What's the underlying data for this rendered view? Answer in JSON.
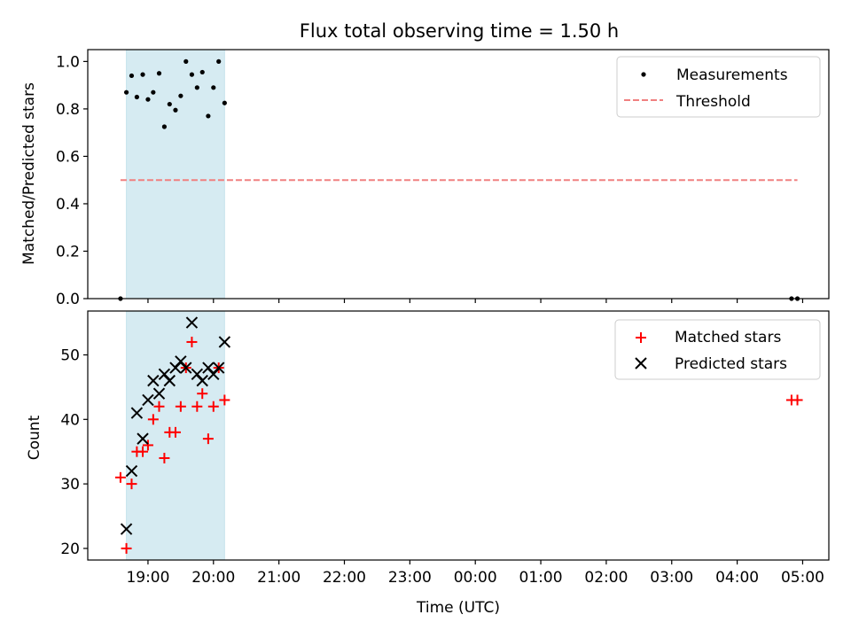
{
  "chart_data": [
    {
      "type": "scatter",
      "title": "Flux total observing time = 1.50 h",
      "xlabel": "",
      "ylabel": "Matched/Predicted stars",
      "ylim": [
        0,
        1.05
      ],
      "yticks": [
        "0.0",
        "0.2",
        "0.4",
        "0.6",
        "0.8",
        "1.0"
      ],
      "shaded_interval_hours": [
        18.67,
        20.17
      ],
      "shade_color": "#add8e6",
      "legend_position": "top-right",
      "series": [
        {
          "name": "Measurements",
          "marker": "dot",
          "color": "#000000",
          "points": [
            [
              18.58,
              0.0
            ],
            [
              18.67,
              0.87
            ],
            [
              18.75,
              0.94
            ],
            [
              18.83,
              0.85
            ],
            [
              18.92,
              0.945
            ],
            [
              19.0,
              0.84
            ],
            [
              19.08,
              0.87
            ],
            [
              19.17,
              0.95
            ],
            [
              19.25,
              0.725
            ],
            [
              19.33,
              0.82
            ],
            [
              19.42,
              0.795
            ],
            [
              19.5,
              0.855
            ],
            [
              19.58,
              1.0
            ],
            [
              19.67,
              0.945
            ],
            [
              19.75,
              0.89
            ],
            [
              19.83,
              0.955
            ],
            [
              19.92,
              0.77
            ],
            [
              20.0,
              0.89
            ],
            [
              20.08,
              1.0
            ],
            [
              20.17,
              0.825
            ],
            [
              28.83,
              0.0
            ],
            [
              28.92,
              0.0
            ]
          ]
        },
        {
          "name": "Threshold",
          "style": "dashed-line",
          "color": "#f08080",
          "points": [
            [
              18.58,
              0.5
            ],
            [
              28.92,
              0.5
            ]
          ]
        }
      ]
    },
    {
      "type": "scatter",
      "title": "",
      "xlabel": "Time (UTC)",
      "ylabel": "Count",
      "ylim": [
        18.2,
        56.8
      ],
      "yticks": [
        "20",
        "30",
        "40",
        "50"
      ],
      "xticks": [
        "19:00",
        "20:00",
        "21:00",
        "22:00",
        "23:00",
        "00:00",
        "01:00",
        "02:00",
        "03:00",
        "04:00",
        "05:00"
      ],
      "xlim_hours": [
        18.08,
        29.4
      ],
      "shaded_interval_hours": [
        18.67,
        20.17
      ],
      "shade_color": "#add8e6",
      "legend_position": "top-right",
      "series": [
        {
          "name": "Matched stars",
          "marker": "plus",
          "color": "#ff0000",
          "points": [
            [
              18.58,
              31
            ],
            [
              18.67,
              20
            ],
            [
              18.75,
              30
            ],
            [
              18.83,
              35
            ],
            [
              18.92,
              35
            ],
            [
              19.0,
              36
            ],
            [
              19.08,
              40
            ],
            [
              19.17,
              42
            ],
            [
              19.25,
              34
            ],
            [
              19.33,
              38
            ],
            [
              19.42,
              38
            ],
            [
              19.5,
              42
            ],
            [
              19.58,
              48
            ],
            [
              19.67,
              52
            ],
            [
              19.75,
              42
            ],
            [
              19.83,
              44
            ],
            [
              19.92,
              37
            ],
            [
              20.0,
              42
            ],
            [
              20.08,
              48
            ],
            [
              20.17,
              43
            ],
            [
              28.83,
              43
            ],
            [
              28.92,
              43
            ]
          ]
        },
        {
          "name": "Predicted stars",
          "marker": "x",
          "color": "#000000",
          "points": [
            [
              18.67,
              23
            ],
            [
              18.75,
              32
            ],
            [
              18.83,
              41
            ],
            [
              18.92,
              37
            ],
            [
              19.0,
              43
            ],
            [
              19.08,
              46
            ],
            [
              19.17,
              44
            ],
            [
              19.25,
              47
            ],
            [
              19.33,
              46
            ],
            [
              19.42,
              48
            ],
            [
              19.5,
              49
            ],
            [
              19.58,
              48
            ],
            [
              19.67,
              55
            ],
            [
              19.75,
              47
            ],
            [
              19.83,
              46
            ],
            [
              19.92,
              48
            ],
            [
              20.0,
              47
            ],
            [
              20.08,
              48
            ],
            [
              20.17,
              52
            ]
          ]
        }
      ]
    }
  ]
}
